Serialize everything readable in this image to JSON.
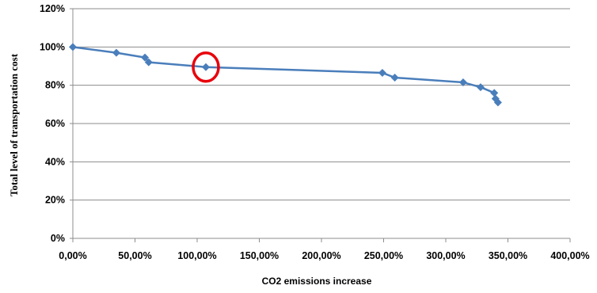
{
  "chart_data": {
    "type": "line",
    "title": "",
    "xlabel": "CO2 emissions increase",
    "ylabel": "Total level of transportation cost",
    "xlim": [
      0,
      400
    ],
    "ylim": [
      0,
      120
    ],
    "x_ticks": [
      "0,00%",
      "50,00%",
      "100,00%",
      "150,00%",
      "200,00%",
      "250,00%",
      "300,00%",
      "350,00%",
      "400,00%"
    ],
    "y_ticks": [
      "0%",
      "20%",
      "40%",
      "60%",
      "80%",
      "100%",
      "120%"
    ],
    "grid": "horizontal",
    "legend": "none",
    "series": [
      {
        "color": "#4a7ebb",
        "marker": "diamond",
        "x": [
          0,
          35,
          58,
          61,
          107,
          249,
          259,
          314,
          328,
          339,
          340,
          342
        ],
        "y": [
          100,
          97,
          94.5,
          92,
          89.5,
          86.5,
          84,
          81.5,
          79,
          76,
          73,
          71
        ]
      }
    ],
    "annotations": [
      {
        "type": "circle",
        "x": 107,
        "y": 89.5,
        "color": "#e8000b"
      }
    ]
  }
}
